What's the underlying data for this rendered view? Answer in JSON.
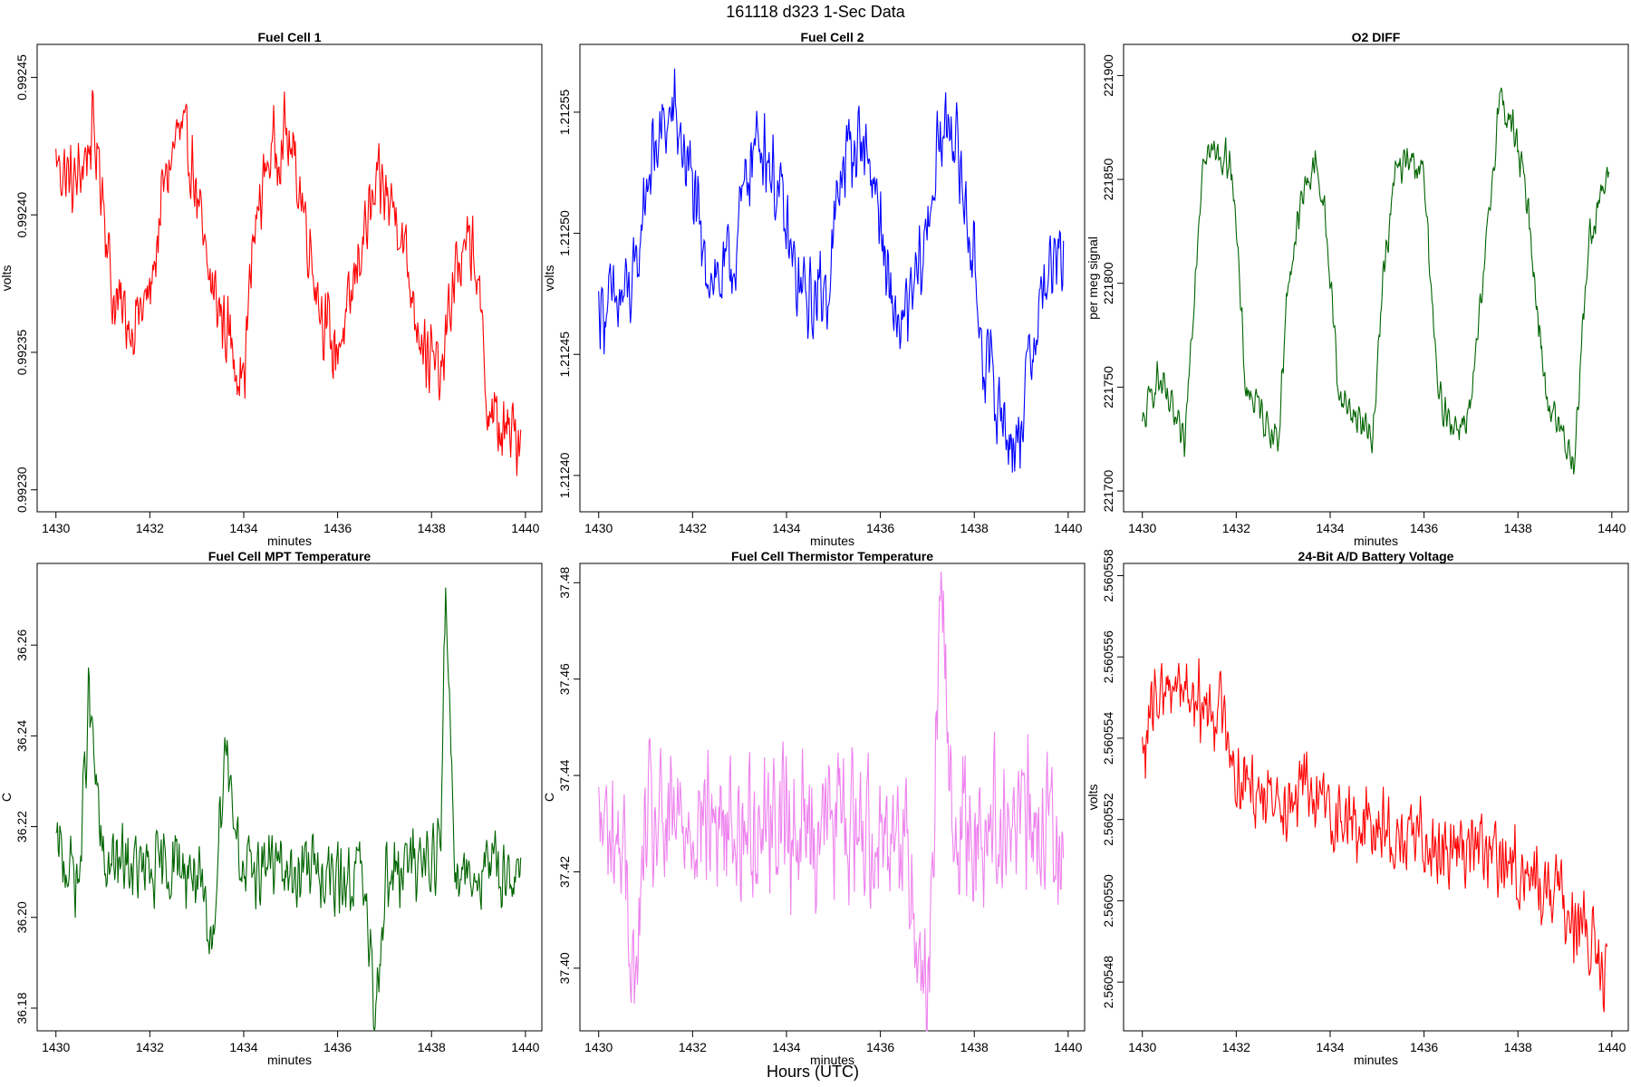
{
  "figure": {
    "suptitle": "161118   d323   1-Sec Data",
    "bottom_label": "Hours (UTC)"
  },
  "chart_data": [
    {
      "type": "line",
      "title": "Fuel Cell 1",
      "xlabel": "minutes",
      "ylabel": "volts",
      "color": "#ff0000",
      "xlim": [
        1429.6,
        1440.35
      ],
      "ylim": [
        0.992292,
        0.992462
      ],
      "xticks": [
        1430,
        1432,
        1434,
        1436,
        1438,
        1440
      ],
      "yticks": [
        0.9923,
        0.99235,
        0.9924,
        0.99245
      ],
      "ytick_labels": [
        "0.99230",
        "0.99235",
        "0.99240",
        "0.99245"
      ],
      "series": [
        {
          "name": "Fuel Cell 1",
          "x": [
            1430.0,
            1430.4,
            1430.8,
            1431.0,
            1431.2,
            1431.6,
            1432.0,
            1432.3,
            1432.6,
            1432.9,
            1433.2,
            1433.6,
            1434.0,
            1434.2,
            1434.5,
            1434.9,
            1435.2,
            1435.6,
            1435.9,
            1436.2,
            1436.5,
            1436.9,
            1437.3,
            1437.6,
            1437.9,
            1438.2,
            1438.5,
            1438.9,
            1439.2,
            1439.5,
            1439.9
          ],
          "values": [
            0.99242,
            0.99241,
            0.99243,
            0.99241,
            0.99237,
            0.99236,
            0.99237,
            0.99241,
            0.99243,
            0.99242,
            0.99238,
            0.99236,
            0.99234,
            0.99239,
            0.99242,
            0.99243,
            0.99241,
            0.99237,
            0.99235,
            0.99236,
            0.99239,
            0.99241,
            0.9924,
            0.99237,
            0.99235,
            0.99234,
            0.99238,
            0.99239,
            0.99233,
            0.99232,
            0.99232
          ]
        }
      ]
    },
    {
      "type": "line",
      "title": "Fuel Cell 2",
      "xlabel": "minutes",
      "ylabel": "volts",
      "color": "#0000ff",
      "xlim": [
        1429.6,
        1440.35
      ],
      "ylim": [
        1.212385,
        1.212578
      ],
      "xticks": [
        1430,
        1432,
        1434,
        1436,
        1438,
        1440
      ],
      "yticks": [
        1.2124,
        1.21245,
        1.2125,
        1.21255
      ],
      "ytick_labels": [
        "1.21240",
        "1.21245",
        "1.21250",
        "1.21255"
      ],
      "series": [
        {
          "name": "Fuel Cell 2",
          "x": [
            1430.0,
            1430.4,
            1430.8,
            1431.0,
            1431.3,
            1431.6,
            1432.0,
            1432.2,
            1432.6,
            1432.9,
            1433.2,
            1433.5,
            1433.9,
            1434.2,
            1434.5,
            1434.9,
            1435.2,
            1435.6,
            1435.9,
            1436.2,
            1436.5,
            1436.9,
            1437.2,
            1437.5,
            1437.9,
            1438.2,
            1438.5,
            1438.9,
            1439.2,
            1439.5,
            1439.9
          ],
          "values": [
            1.21247,
            1.21247,
            1.21248,
            1.21252,
            1.21254,
            1.21255,
            1.21252,
            1.21249,
            1.21248,
            1.21249,
            1.21253,
            1.21254,
            1.21251,
            1.21248,
            1.21247,
            1.21248,
            1.21253,
            1.21254,
            1.21252,
            1.21247,
            1.21246,
            1.21249,
            1.21253,
            1.21255,
            1.2125,
            1.21245,
            1.21243,
            1.21241,
            1.21245,
            1.21248,
            1.21249
          ]
        }
      ]
    },
    {
      "type": "line",
      "title": "O2 DIFF",
      "xlabel": "minutes",
      "ylabel": "per meg signal",
      "color": "#006400",
      "xlim": [
        1429.6,
        1440.35
      ],
      "ylim": [
        221690,
        221915
      ],
      "xticks": [
        1430,
        1432,
        1434,
        1436,
        1438,
        1440
      ],
      "yticks": [
        221700,
        221750,
        221800,
        221850,
        221900
      ],
      "ytick_labels": [
        "221700",
        "221750",
        "221800",
        "221850",
        "221900"
      ],
      "series": [
        {
          "name": "O2 DIFF",
          "x": [
            1430.0,
            1430.3,
            1430.6,
            1430.9,
            1431.0,
            1431.3,
            1431.7,
            1431.9,
            1432.2,
            1432.6,
            1432.9,
            1433.1,
            1433.4,
            1433.7,
            1433.9,
            1434.2,
            1434.6,
            1434.9,
            1435.1,
            1435.4,
            1435.8,
            1436.0,
            1436.3,
            1436.7,
            1437.0,
            1437.3,
            1437.6,
            1437.9,
            1438.2,
            1438.6,
            1438.9,
            1439.2,
            1439.5,
            1439.8,
            1439.95
          ],
          "values": [
            221730,
            221755,
            221740,
            221720,
            221760,
            221865,
            221860,
            221860,
            221750,
            221735,
            221725,
            221800,
            221840,
            221860,
            221830,
            221745,
            221735,
            221725,
            221795,
            221855,
            221860,
            221850,
            221745,
            221730,
            221740,
            221810,
            221890,
            221875,
            221840,
            221745,
            221730,
            221715,
            221820,
            221845,
            221850
          ]
        }
      ]
    },
    {
      "type": "line",
      "title": "Fuel Cell MPT Temperature",
      "xlabel": "minutes",
      "ylabel": "C",
      "color": "#006400",
      "xlim": [
        1429.6,
        1440.35
      ],
      "ylim": [
        36.175,
        36.278
      ],
      "xticks": [
        1430,
        1432,
        1434,
        1436,
        1438,
        1440
      ],
      "yticks": [
        36.18,
        36.2,
        36.22,
        36.24,
        36.26
      ],
      "ytick_labels": [
        "36.18",
        "36.20",
        "36.22",
        "36.24",
        "36.26"
      ],
      "series": [
        {
          "name": "Fuel Cell MPT Temperature",
          "x": [
            1430.0,
            1430.5,
            1430.7,
            1431.0,
            1431.5,
            1432.0,
            1432.5,
            1433.0,
            1433.3,
            1433.6,
            1434.0,
            1434.5,
            1435.0,
            1435.5,
            1436.0,
            1436.5,
            1436.8,
            1437.0,
            1437.5,
            1437.9,
            1438.2,
            1438.3,
            1438.5,
            1439.0,
            1439.5,
            1439.9
          ],
          "values": [
            36.215,
            36.208,
            36.249,
            36.211,
            36.212,
            36.209,
            36.212,
            36.21,
            36.191,
            36.239,
            36.208,
            36.213,
            36.209,
            36.212,
            36.207,
            36.211,
            36.179,
            36.208,
            36.211,
            36.214,
            36.215,
            36.273,
            36.212,
            36.209,
            36.211,
            36.208
          ]
        }
      ]
    },
    {
      "type": "line",
      "title": "Fuel Cell Thermistor Temperature",
      "xlabel": "minutes",
      "ylabel": "C",
      "color": "#ee82ee",
      "xlim": [
        1429.6,
        1440.35
      ],
      "ylim": [
        37.387,
        37.484
      ],
      "xticks": [
        1430,
        1432,
        1434,
        1436,
        1438,
        1440
      ],
      "yticks": [
        37.4,
        37.42,
        37.44,
        37.46,
        37.48
      ],
      "ytick_labels": [
        "37.40",
        "37.42",
        "37.44",
        "37.46",
        "37.48"
      ],
      "series": [
        {
          "name": "Fuel Cell Thermistor Temperature",
          "x": [
            1430.0,
            1430.5,
            1430.8,
            1431.0,
            1431.5,
            1432.0,
            1432.5,
            1433.0,
            1433.5,
            1434.0,
            1434.5,
            1435.0,
            1435.5,
            1436.0,
            1436.5,
            1437.0,
            1437.3,
            1437.5,
            1438.0,
            1438.5,
            1439.0,
            1439.5,
            1439.9
          ],
          "values": [
            37.43,
            37.425,
            37.395,
            37.43,
            37.428,
            37.432,
            37.43,
            37.428,
            37.432,
            37.43,
            37.429,
            37.431,
            37.43,
            37.428,
            37.43,
            37.393,
            37.48,
            37.43,
            37.428,
            37.432,
            37.43,
            37.429,
            37.43
          ]
        }
      ]
    },
    {
      "type": "line",
      "title": "24-Bit A/D Battery Voltage",
      "xlabel": "minutes",
      "ylabel": "volts",
      "color": "#ff0000",
      "xlim": [
        1429.6,
        1440.35
      ],
      "ylim": [
        2.5605468,
        2.5605583
      ],
      "xticks": [
        1430,
        1432,
        1434,
        1436,
        1438,
        1440
      ],
      "yticks": [
        2.560548,
        2.56055,
        2.560552,
        2.560554,
        2.560556,
        2.560558
      ],
      "ytick_labels": [
        "2.560548",
        "2.560550",
        "2.560552",
        "2.560554",
        "2.560556",
        "2.560558"
      ],
      "series": [
        {
          "name": "24-Bit A/D Battery Voltage",
          "x": [
            1430.0,
            1430.3,
            1430.6,
            1430.9,
            1431.2,
            1431.5,
            1431.8,
            1432.0,
            1432.5,
            1433.0,
            1433.5,
            1434.0,
            1434.3,
            1434.6,
            1435.0,
            1435.5,
            1436.0,
            1436.5,
            1437.0,
            1437.5,
            1438.0,
            1438.5,
            1439.0,
            1439.5,
            1439.9
          ],
          "values": [
            2.5605535,
            2.560555,
            2.5605555,
            2.5605553,
            2.5605548,
            2.5605548,
            2.5605545,
            2.560553,
            2.5605528,
            2.5605526,
            2.5605527,
            2.5605522,
            2.560552,
            2.5605518,
            2.560552,
            2.5605514,
            2.5605516,
            2.5605513,
            2.5605514,
            2.560551,
            2.5605508,
            2.5605504,
            2.56055,
            2.560549,
            2.560548
          ]
        }
      ]
    }
  ]
}
